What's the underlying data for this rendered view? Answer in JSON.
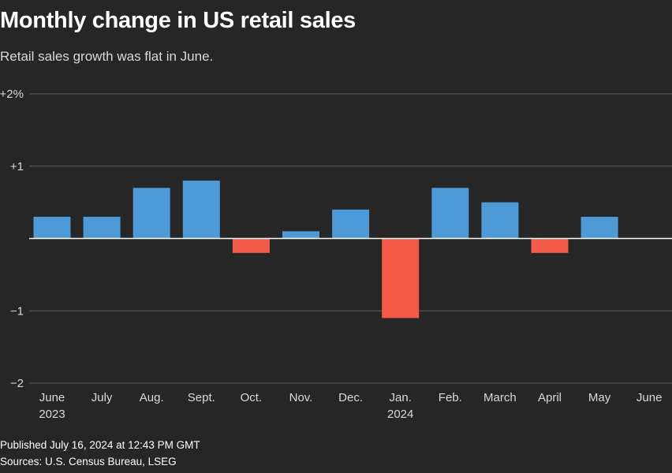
{
  "title": "Monthly change in US retail sales",
  "subtitle": "Retail sales growth was flat in June.",
  "footer": {
    "published": "Published July 16, 2024 at 12:43 PM GMT",
    "sources": "Sources: U.S. Census Bureau, LSEG"
  },
  "colors": {
    "background": "#262626",
    "positive": "#4e9ad6",
    "negative": "#f45a48",
    "grid": "#5e5e5e",
    "zero_line": "#ffffff",
    "text": "#d9d9d9"
  },
  "chart_data": {
    "type": "bar",
    "categories": [
      "June",
      "July",
      "Aug.",
      "Sept.",
      "Oct.",
      "Nov.",
      "Dec.",
      "Jan.",
      "Feb.",
      "March",
      "April",
      "May",
      "June"
    ],
    "year_labels": [
      "2023",
      "",
      "",
      "",
      "",
      "",
      "",
      "2024",
      "",
      "",
      "",
      "",
      ""
    ],
    "values": [
      0.3,
      0.3,
      0.7,
      0.8,
      -0.2,
      0.1,
      0.4,
      -1.1,
      0.7,
      0.5,
      -0.2,
      0.3,
      0.0
    ],
    "ylim": [
      -2,
      2
    ],
    "yticks": [
      2,
      1,
      0,
      -1,
      -2
    ],
    "ytick_labels": [
      "+2%",
      "+1",
      "",
      "−1",
      "−2"
    ],
    "grid": true,
    "xlabel": "",
    "ylabel": ""
  }
}
